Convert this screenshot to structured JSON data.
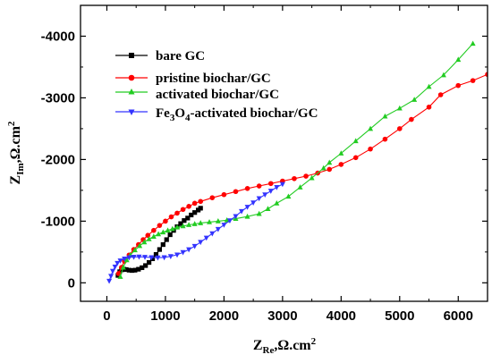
{
  "chart_data": {
    "type": "line",
    "title": "",
    "xlabel": {
      "main": "Z",
      "sub": "Re",
      "unit": ",Ω.cm",
      "sup": "2"
    },
    "ylabel": {
      "main": "Z",
      "sub": "Im",
      "unit": ",Ω.cm",
      "sup": "2"
    },
    "xlim": [
      -450,
      6500
    ],
    "ylim": [
      300,
      -4500
    ],
    "x_ticks": [
      0,
      1000,
      2000,
      3000,
      4000,
      5000,
      6000
    ],
    "y_ticks": [
      0,
      -1000,
      -2000,
      -3000,
      -4000
    ],
    "x_tick_labels": [
      "0",
      "1000",
      "2000",
      "3000",
      "4000",
      "5000",
      "6000"
    ],
    "y_tick_labels": [
      "0",
      "-1000",
      "-2000",
      "-3000",
      "-4000"
    ],
    "grid": false,
    "legend_position": "top-left",
    "series": [
      {
        "name": "bare GC",
        "legend": {
          "pre": "bare GC"
        },
        "color": "#000000",
        "marker": "square",
        "x": [
          190,
          220,
          250,
          290,
          330,
          380,
          430,
          480,
          540,
          600,
          660,
          720,
          780,
          840,
          900,
          960,
          1020,
          1080,
          1140,
          1200,
          1260,
          1320,
          1380,
          1440,
          1500,
          1560,
          1600
        ],
        "y": [
          -120,
          -180,
          -210,
          -220,
          -215,
          -205,
          -200,
          -205,
          -220,
          -245,
          -280,
          -330,
          -390,
          -460,
          -540,
          -620,
          -700,
          -780,
          -850,
          -910,
          -960,
          -1010,
          -1050,
          -1100,
          -1140,
          -1180,
          -1210
        ]
      },
      {
        "name": "pristine biochar/GC",
        "legend": {
          "pre": "pristine biochar/GC"
        },
        "color": "#ff0000",
        "marker": "circle",
        "x": [
          200,
          250,
          300,
          380,
          460,
          540,
          620,
          700,
          800,
          900,
          1000,
          1100,
          1200,
          1300,
          1400,
          1500,
          1600,
          1800,
          2000,
          2200,
          2400,
          2600,
          2800,
          3000,
          3200,
          3400,
          3600,
          3800,
          4000,
          4250,
          4500,
          4750,
          5000,
          5200,
          5500,
          5700,
          6000,
          6250,
          6500
        ],
        "y": [
          -150,
          -250,
          -350,
          -450,
          -540,
          -620,
          -700,
          -770,
          -850,
          -930,
          -1000,
          -1070,
          -1130,
          -1190,
          -1240,
          -1290,
          -1320,
          -1380,
          -1430,
          -1480,
          -1530,
          -1570,
          -1610,
          -1650,
          -1690,
          -1730,
          -1780,
          -1840,
          -1920,
          -2030,
          -2170,
          -2330,
          -2500,
          -2650,
          -2850,
          -3050,
          -3200,
          -3280,
          -3380
        ]
      },
      {
        "name": "activated biochar/GC",
        "legend": {
          "pre": "activated biochar/GC"
        },
        "color": "#22cc22",
        "marker": "triangle-up",
        "x": [
          230,
          280,
          340,
          400,
          480,
          560,
          640,
          720,
          800,
          880,
          960,
          1040,
          1120,
          1200,
          1300,
          1400,
          1500,
          1600,
          1750,
          1900,
          2050,
          2200,
          2400,
          2600,
          2750,
          2900,
          3100,
          3300,
          3500,
          3700,
          3800,
          4000,
          4250,
          4500,
          4750,
          5000,
          5250,
          5500,
          5750,
          6000,
          6250
        ],
        "y": [
          -100,
          -250,
          -370,
          -450,
          -530,
          -600,
          -660,
          -710,
          -750,
          -790,
          -820,
          -850,
          -875,
          -900,
          -920,
          -940,
          -955,
          -970,
          -985,
          -1000,
          -1015,
          -1040,
          -1075,
          -1120,
          -1200,
          -1290,
          -1400,
          -1550,
          -1700,
          -1860,
          -1950,
          -2100,
          -2300,
          -2500,
          -2700,
          -2830,
          -2970,
          -3180,
          -3370,
          -3620,
          -3880
        ]
      },
      {
        "name": "Fe3O4-activated biochar/GC",
        "legend": {
          "pre": "Fe",
          "sub1": "3",
          "mid": "O",
          "sub2": "4",
          "post": "-activated biochar/GC"
        },
        "color": "#3333ff",
        "marker": "triangle-down",
        "x": [
          40,
          70,
          100,
          140,
          180,
          230,
          300,
          380,
          460,
          550,
          650,
          760,
          870,
          980,
          1090,
          1200,
          1300,
          1400,
          1500,
          1600,
          1700,
          1800,
          1900,
          2000,
          2100,
          2200,
          2300,
          2400,
          2500,
          2600,
          2700,
          2800,
          2900,
          3000
        ],
        "y": [
          -30,
          -110,
          -190,
          -260,
          -320,
          -360,
          -390,
          -410,
          -420,
          -422,
          -418,
          -412,
          -408,
          -412,
          -430,
          -455,
          -495,
          -540,
          -595,
          -660,
          -730,
          -800,
          -870,
          -940,
          -1010,
          -1080,
          -1160,
          -1230,
          -1300,
          -1370,
          -1430,
          -1490,
          -1550,
          -1600
        ]
      }
    ]
  }
}
